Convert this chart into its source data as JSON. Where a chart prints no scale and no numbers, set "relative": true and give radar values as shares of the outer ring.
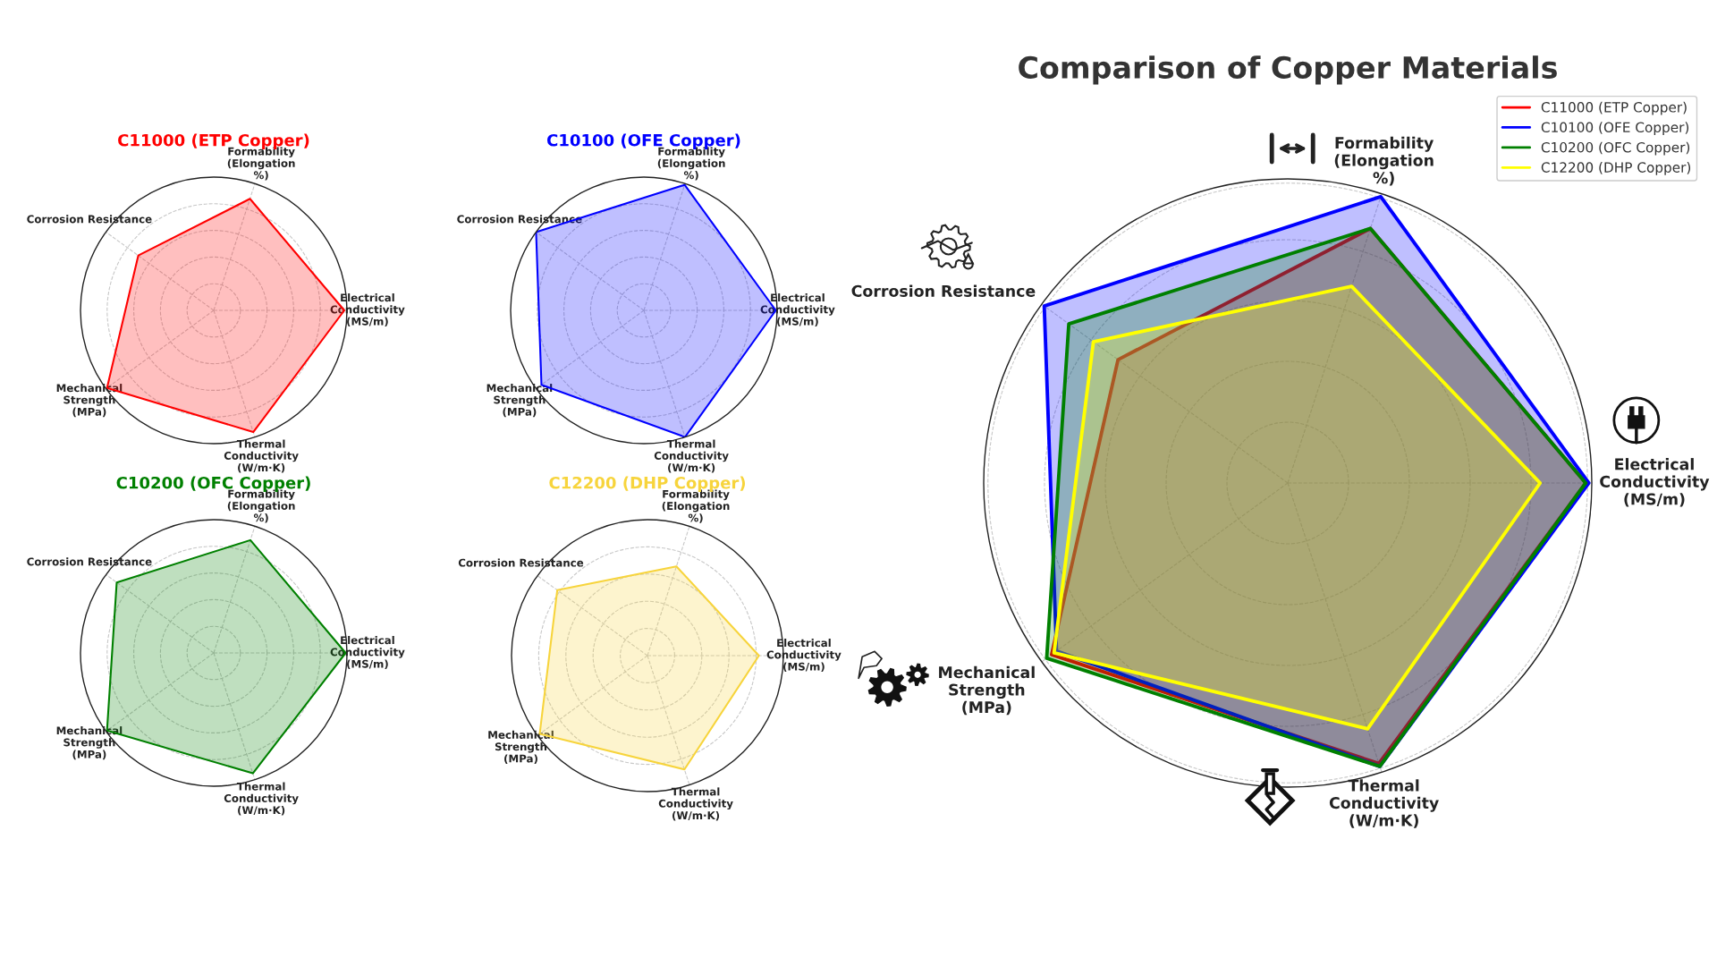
{
  "chart_data": [
    {
      "type": "radar",
      "title": "Comparison of Copper Materials",
      "relative": true,
      "grid": true,
      "legend": "top right",
      "categories": [
        "Formability\n(Elongation\n%)",
        "Electrical\nConductivity\n(MS/m)",
        "Thermal\nConductivity\n(W/m·K)",
        "Mechanical\nStrength\n(MPa)",
        "Corrosion Resistance"
      ],
      "series": [
        {
          "name": "C11000 (ETP Copper)",
          "color": "#ff0000",
          "values": [
            0.88,
            0.98,
            0.97,
            0.96,
            0.69
          ]
        },
        {
          "name": "C10100 (OFE Copper)",
          "color": "#0000ff",
          "values": [
            0.99,
            0.99,
            0.98,
            0.94,
            0.99
          ]
        },
        {
          "name": "C10200 (OFC Copper)",
          "color": "#008000",
          "values": [
            0.88,
            0.98,
            0.98,
            0.98,
            0.89
          ]
        },
        {
          "name": "C12200 (DHP Copper)",
          "color": "#ffff00",
          "values": [
            0.68,
            0.83,
            0.85,
            0.95,
            0.79
          ]
        }
      ]
    },
    {
      "type": "radar",
      "title": "C12200 (DHP Copper)",
      "relative": true,
      "grid": true,
      "categories": [
        "Formability\n(Elongation\n%)",
        "Electrical\nConductivity\n(MS/m)",
        "Thermal\nConductivity\n(W/m·K)",
        "Mechanical\nStrength\n(MPa)",
        "Corrosion Resistance"
      ],
      "series": [
        {
          "color": "#f7d43c",
          "values": [
            0.69,
            0.82,
            0.88,
            0.98,
            0.82
          ]
        }
      ]
    },
    {
      "type": "radar",
      "title": "C10200 (OFC Copper)",
      "relative": true,
      "grid": true,
      "categories": [
        "Formability\n(Elongation\n%)",
        "Electrical\nConductivity\n(MS/m)",
        "Thermal\nConductivity\n(W/m·K)",
        "Mechanical\nStrength\n(MPa)",
        "Corrosion Resistance"
      ],
      "series": [
        {
          "color": "#008000",
          "values": [
            0.89,
            0.99,
            0.95,
            0.99,
            0.9
          ]
        }
      ]
    },
    {
      "type": "radar",
      "title": "C11000 (ETP Copper)",
      "relative": true,
      "grid": true,
      "categories": [
        "Formability\n(Elongation\n%)",
        "Electrical\nConductivity\n(MS/m)",
        "Thermal\nConductivity\n(W/m·K)",
        "Mechanical\nStrength\n(MPa)",
        "Corrosion Resistance"
      ],
      "series": [
        {
          "color": "#ff0000",
          "values": [
            0.88,
            0.98,
            0.96,
            0.99,
            0.7
          ]
        }
      ]
    },
    {
      "type": "radar",
      "title": "C10100 (OFE Copper)",
      "relative": true,
      "grid": true,
      "categories": [
        "Formability\n(Elongation\n%)",
        "Electrical\nConductivity\n(MS/m)",
        "Thermal\nConductivity\n(W/m·K)",
        "Mechanical\nStrength\n(MPa)",
        "Corrosion Resistance"
      ],
      "series": [
        {
          "color": "#0000ff",
          "values": [
            0.99,
            0.99,
            1.0,
            0.95,
            1.0
          ]
        }
      ]
    }
  ]
}
